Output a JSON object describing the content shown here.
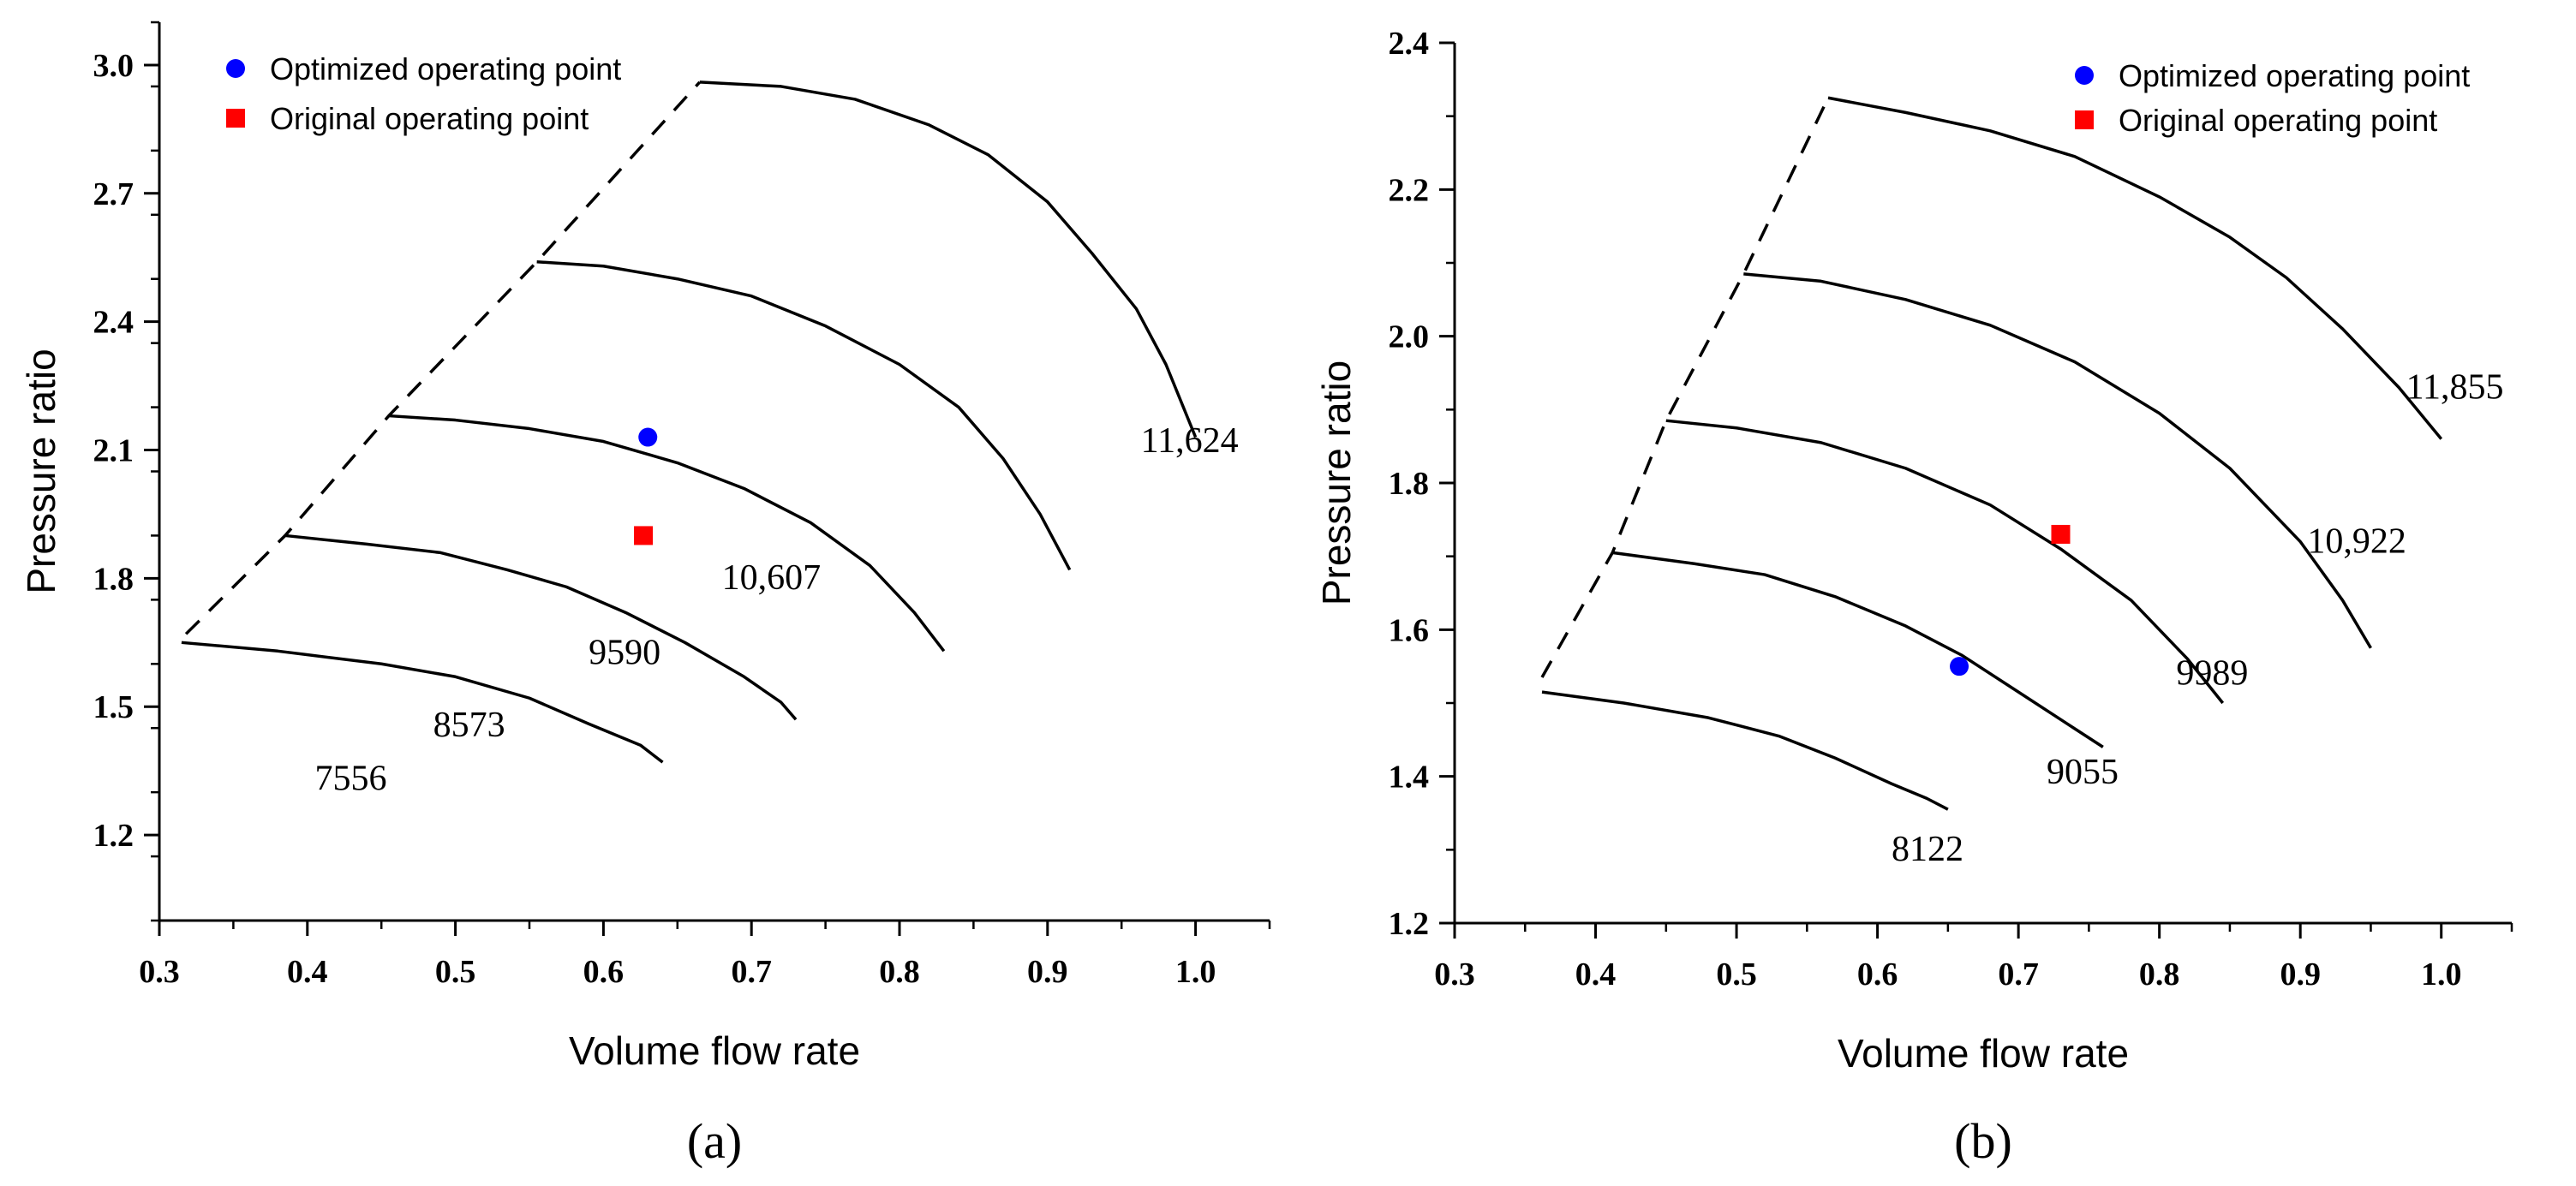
{
  "chart_data": [
    {
      "type": "line",
      "panel_label": "(a)",
      "xlabel": "Volume flow rate",
      "ylabel": "Pressure ratio",
      "xlim": [
        0.3,
        1.05
      ],
      "ylim": [
        1.0,
        3.1
      ],
      "xticks": [
        0.3,
        0.4,
        0.5,
        0.6,
        0.7,
        0.8,
        0.9,
        1.0
      ],
      "xtick_labels": [
        "0.3",
        "0.4",
        "0.5",
        "0.6",
        "0.7",
        "0.8",
        "0.9",
        "1.0"
      ],
      "yticks": [
        1.2,
        1.5,
        1.8,
        2.1,
        2.4,
        2.7,
        3.0
      ],
      "ytick_labels": [
        "1.2",
        "1.5",
        "1.8",
        "2.1",
        "2.4",
        "2.7",
        "3.0"
      ],
      "series": [
        {
          "name": "7556",
          "label": "7556",
          "label_at": [
            0.405,
            1.305
          ],
          "x": [
            0.315,
            0.38,
            0.45,
            0.5,
            0.55,
            0.59,
            0.625,
            0.64
          ],
          "y": [
            1.65,
            1.63,
            1.6,
            1.57,
            1.52,
            1.46,
            1.41,
            1.37
          ]
        },
        {
          "name": "8573",
          "label": "8573",
          "label_at": [
            0.485,
            1.43
          ],
          "x": [
            0.385,
            0.44,
            0.49,
            0.535,
            0.575,
            0.615,
            0.655,
            0.695,
            0.72,
            0.73
          ],
          "y": [
            1.9,
            1.88,
            1.86,
            1.82,
            1.78,
            1.72,
            1.65,
            1.57,
            1.51,
            1.47
          ]
        },
        {
          "name": "9590",
          "label": "9590",
          "label_at": [
            0.59,
            1.6
          ],
          "x": [
            0.455,
            0.5,
            0.55,
            0.6,
            0.65,
            0.695,
            0.74,
            0.78,
            0.81,
            0.83
          ],
          "y": [
            2.18,
            2.17,
            2.15,
            2.12,
            2.07,
            2.01,
            1.93,
            1.83,
            1.72,
            1.63
          ]
        },
        {
          "name": "10,607",
          "label": "10,607",
          "label_at": [
            0.68,
            1.775
          ],
          "x": [
            0.555,
            0.6,
            0.65,
            0.7,
            0.75,
            0.8,
            0.84,
            0.87,
            0.895,
            0.915
          ],
          "y": [
            2.54,
            2.53,
            2.5,
            2.46,
            2.39,
            2.3,
            2.2,
            2.08,
            1.95,
            1.82
          ]
        },
        {
          "name": "11,624",
          "label": "11,624",
          "label_at": [
            0.963,
            2.095
          ],
          "x": [
            0.665,
            0.72,
            0.77,
            0.82,
            0.86,
            0.9,
            0.93,
            0.96,
            0.98,
            1.0
          ],
          "y": [
            2.96,
            2.95,
            2.92,
            2.86,
            2.79,
            2.68,
            2.56,
            2.43,
            2.3,
            2.13
          ]
        }
      ],
      "surge_line": {
        "x": [
          0.318,
          0.385,
          0.455,
          0.555,
          0.665
        ],
        "y": [
          1.67,
          1.9,
          2.18,
          2.54,
          2.96
        ]
      },
      "points": [
        {
          "name": "Optimized operating point",
          "x": 0.63,
          "y": 2.13,
          "marker": "circle",
          "color": "#0000ff"
        },
        {
          "name": "Original operating point",
          "x": 0.627,
          "y": 1.9,
          "marker": "square",
          "color": "#ff0000"
        }
      ],
      "legend": {
        "placement": "top-left",
        "items": [
          {
            "label": "Optimized operating point",
            "marker": "circle",
            "color": "#0000ff"
          },
          {
            "label": "Original operating point",
            "marker": "square",
            "color": "#ff0000"
          }
        ]
      }
    },
    {
      "type": "line",
      "panel_label": "(b)",
      "xlabel": "Volume flow rate",
      "ylabel": "Pressure ratio",
      "xlim": [
        0.3,
        1.05
      ],
      "ylim": [
        1.2,
        2.4
      ],
      "xticks": [
        0.3,
        0.4,
        0.5,
        0.6,
        0.7,
        0.8,
        0.9,
        1.0
      ],
      "xtick_labels": [
        "0.3",
        "0.4",
        "0.5",
        "0.6",
        "0.7",
        "0.8",
        "0.9",
        "1.0"
      ],
      "yticks": [
        1.2,
        1.4,
        1.6,
        1.8,
        2.0,
        2.2,
        2.4
      ],
      "ytick_labels": [
        "1.2",
        "1.4",
        "1.6",
        "1.8",
        "2.0",
        "2.2",
        "2.4"
      ],
      "series": [
        {
          "name": "8122",
          "label": "8122",
          "label_at": [
            0.61,
            1.285
          ],
          "x": [
            0.362,
            0.42,
            0.48,
            0.53,
            0.57,
            0.61,
            0.635,
            0.65
          ],
          "y": [
            1.515,
            1.5,
            1.48,
            1.455,
            1.425,
            1.39,
            1.37,
            1.355
          ]
        },
        {
          "name": "9055",
          "label": "9055",
          "label_at": [
            0.72,
            1.39
          ],
          "x": [
            0.412,
            0.47,
            0.52,
            0.57,
            0.62,
            0.66,
            0.7,
            0.74,
            0.76
          ],
          "y": [
            1.705,
            1.69,
            1.675,
            1.645,
            1.605,
            1.565,
            1.515,
            1.465,
            1.44
          ]
        },
        {
          "name": "9989",
          "label": "9989",
          "label_at": [
            0.812,
            1.525
          ],
          "x": [
            0.45,
            0.5,
            0.56,
            0.62,
            0.68,
            0.73,
            0.78,
            0.82,
            0.845
          ],
          "y": [
            1.885,
            1.875,
            1.855,
            1.82,
            1.77,
            1.71,
            1.64,
            1.56,
            1.5
          ]
        },
        {
          "name": "10,922",
          "label": "10,922",
          "label_at": [
            0.905,
            1.705
          ],
          "x": [
            0.505,
            0.56,
            0.62,
            0.68,
            0.74,
            0.8,
            0.85,
            0.9,
            0.93,
            0.95
          ],
          "y": [
            2.085,
            2.075,
            2.05,
            2.015,
            1.965,
            1.895,
            1.82,
            1.72,
            1.64,
            1.575
          ]
        },
        {
          "name": "11,855",
          "label": "11,855",
          "label_at": [
            0.975,
            1.915
          ],
          "x": [
            0.565,
            0.62,
            0.68,
            0.74,
            0.8,
            0.85,
            0.89,
            0.93,
            0.97,
            1.0
          ],
          "y": [
            2.325,
            2.305,
            2.28,
            2.245,
            2.19,
            2.135,
            2.08,
            2.01,
            1.93,
            1.86
          ]
        }
      ],
      "surge_line": {
        "x": [
          0.362,
          0.412,
          0.45,
          0.505,
          0.565
        ],
        "y": [
          1.535,
          1.705,
          1.885,
          2.085,
          2.325
        ]
      },
      "points": [
        {
          "name": "Optimized operating point",
          "x": 0.658,
          "y": 1.55,
          "marker": "circle",
          "color": "#0000ff"
        },
        {
          "name": "Original operating point",
          "x": 0.73,
          "y": 1.73,
          "marker": "square",
          "color": "#ff0000"
        }
      ],
      "legend": {
        "placement": "top-right",
        "items": [
          {
            "label": "Optimized operating point",
            "marker": "circle",
            "color": "#0000ff"
          },
          {
            "label": "Original operating point",
            "marker": "square",
            "color": "#ff0000"
          }
        ]
      }
    }
  ]
}
